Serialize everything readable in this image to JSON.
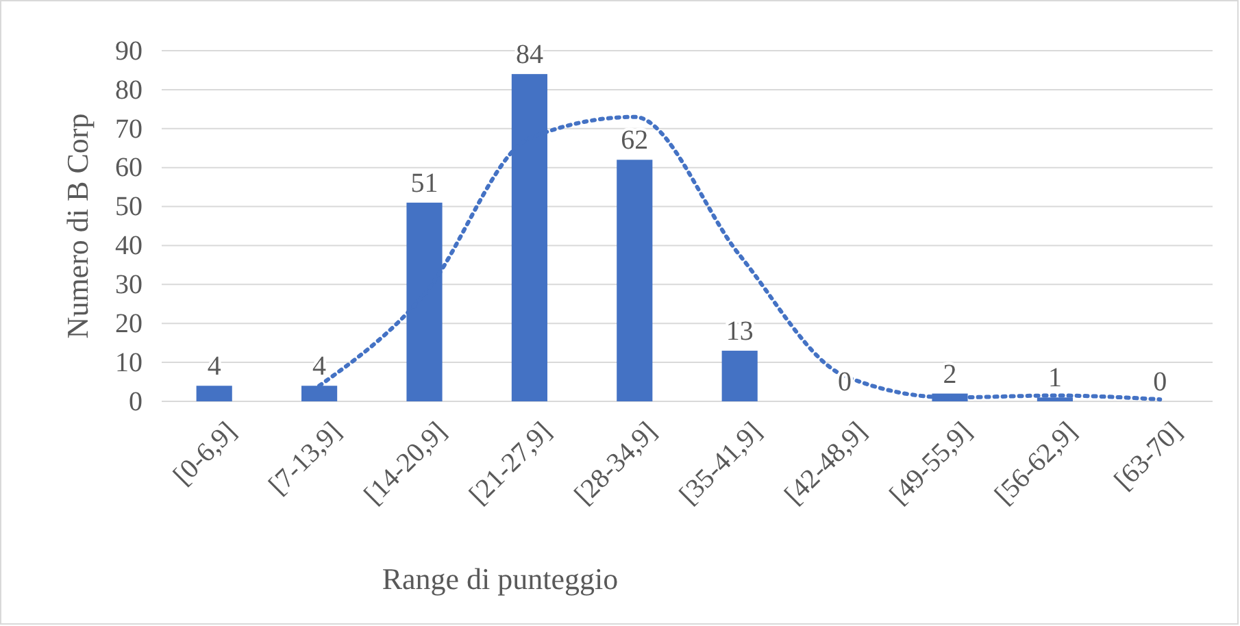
{
  "chart_data": {
    "type": "bar",
    "xlabel": "Range di punteggio",
    "ylabel": "Numero di B Corp",
    "categories": [
      "[0-6,9]",
      "[7-13,9]",
      "[14-20,9]",
      "[21-27,9]",
      "[28-34,9]",
      "[35-41,9]",
      "[42-48,9]",
      "[49-55,9]",
      "[56-62,9]",
      "[63-70]"
    ],
    "series": [
      {
        "color": "#4472c4",
        "values": [
          4,
          4,
          51,
          84,
          62,
          13,
          0,
          2,
          1,
          0
        ],
        "data_labels": true
      },
      {
        "type": "line",
        "color": "#4472c4",
        "line_style": "dotted",
        "marker": "none",
        "values": [
          null,
          4,
          27.5,
          67.5,
          73,
          37.5,
          6.5,
          1,
          1.5,
          0.5
        ]
      }
    ],
    "ylim": [
      0,
      90
    ],
    "yticks": [
      0,
      10,
      20,
      30,
      40,
      50,
      60,
      70,
      80,
      90
    ],
    "grid": "y"
  }
}
